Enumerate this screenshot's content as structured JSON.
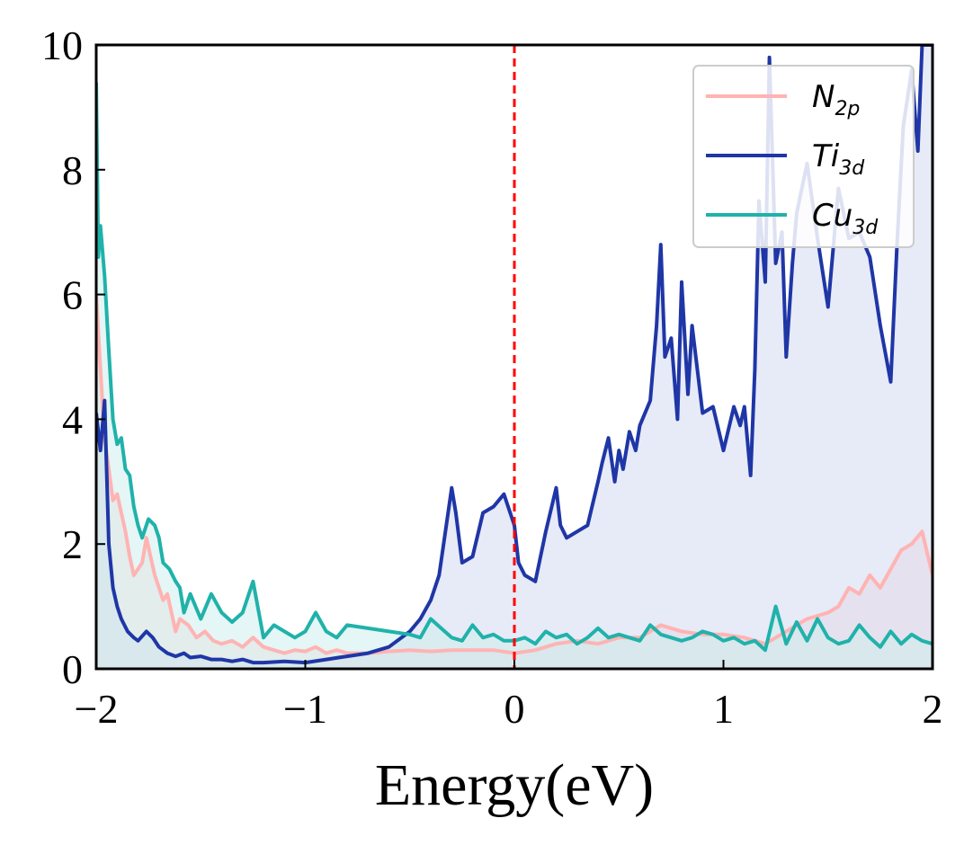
{
  "chart_data": {
    "type": "area",
    "xlabel": "Energy(eV)",
    "ylabel": "",
    "xlim": [
      -2,
      2
    ],
    "ylim": [
      0,
      10
    ],
    "x_ticks": [
      -2,
      -1,
      0,
      1,
      2
    ],
    "x_tick_labels": [
      "−2",
      "−1",
      "0",
      "1",
      "2"
    ],
    "y_ticks": [
      0,
      2,
      4,
      6,
      8,
      10
    ],
    "y_tick_labels": [
      "0",
      "2",
      "4",
      "6",
      "8",
      "10"
    ],
    "fermi_level": 0,
    "fermi_color": "#ff0000",
    "grid": false,
    "legend_position": "top-right",
    "series": [
      {
        "name": "N",
        "name_sub": "2p",
        "key": "n2p",
        "color": "#ffb3b3",
        "fill": "#f5dcdc",
        "x": [
          -2.0,
          -1.98,
          -1.96,
          -1.94,
          -1.92,
          -1.9,
          -1.88,
          -1.86,
          -1.84,
          -1.82,
          -1.8,
          -1.78,
          -1.76,
          -1.74,
          -1.72,
          -1.7,
          -1.68,
          -1.66,
          -1.64,
          -1.62,
          -1.6,
          -1.56,
          -1.52,
          -1.48,
          -1.44,
          -1.4,
          -1.35,
          -1.3,
          -1.25,
          -1.2,
          -1.15,
          -1.1,
          -1.05,
          -1.0,
          -0.95,
          -0.9,
          -0.85,
          -0.8,
          -0.7,
          -0.6,
          -0.5,
          -0.4,
          -0.3,
          -0.2,
          -0.1,
          0.0,
          0.1,
          0.2,
          0.3,
          0.4,
          0.5,
          0.6,
          0.7,
          0.8,
          0.9,
          1.0,
          1.1,
          1.2,
          1.3,
          1.4,
          1.5,
          1.55,
          1.6,
          1.65,
          1.7,
          1.75,
          1.8,
          1.85,
          1.9,
          1.95,
          2.0
        ],
        "y": [
          6.0,
          4.8,
          3.7,
          3.2,
          2.7,
          2.8,
          2.5,
          2.2,
          1.8,
          1.5,
          1.6,
          1.7,
          2.1,
          1.8,
          1.5,
          1.3,
          1.1,
          1.2,
          0.9,
          0.6,
          0.8,
          0.7,
          0.5,
          0.6,
          0.45,
          0.4,
          0.45,
          0.35,
          0.5,
          0.35,
          0.3,
          0.25,
          0.3,
          0.28,
          0.35,
          0.25,
          0.3,
          0.25,
          0.25,
          0.28,
          0.3,
          0.28,
          0.3,
          0.3,
          0.3,
          0.25,
          0.3,
          0.4,
          0.45,
          0.4,
          0.5,
          0.5,
          0.7,
          0.6,
          0.55,
          0.55,
          0.5,
          0.4,
          0.6,
          0.8,
          0.9,
          1.0,
          1.3,
          1.2,
          1.5,
          1.3,
          1.6,
          1.9,
          2.0,
          2.2,
          1.5
        ]
      },
      {
        "name": "Ti",
        "name_sub": "3d",
        "key": "ti3d",
        "color": "#1f36a6",
        "fill": "#d4d9f0",
        "x": [
          -2.0,
          -1.98,
          -1.96,
          -1.94,
          -1.92,
          -1.9,
          -1.88,
          -1.85,
          -1.82,
          -1.8,
          -1.76,
          -1.73,
          -1.7,
          -1.66,
          -1.62,
          -1.58,
          -1.55,
          -1.5,
          -1.45,
          -1.4,
          -1.35,
          -1.3,
          -1.25,
          -1.2,
          -1.1,
          -1.0,
          -0.9,
          -0.8,
          -0.7,
          -0.6,
          -0.5,
          -0.45,
          -0.4,
          -0.36,
          -0.33,
          -0.3,
          -0.28,
          -0.25,
          -0.2,
          -0.15,
          -0.1,
          -0.05,
          0.0,
          0.02,
          0.05,
          0.1,
          0.15,
          0.2,
          0.22,
          0.25,
          0.3,
          0.35,
          0.4,
          0.42,
          0.45,
          0.48,
          0.5,
          0.52,
          0.55,
          0.58,
          0.6,
          0.65,
          0.68,
          0.7,
          0.72,
          0.75,
          0.78,
          0.8,
          0.83,
          0.85,
          0.9,
          0.95,
          1.0,
          1.05,
          1.08,
          1.1,
          1.13,
          1.15,
          1.17,
          1.2,
          1.22,
          1.25,
          1.28,
          1.3,
          1.33,
          1.35,
          1.4,
          1.45,
          1.5,
          1.55,
          1.6,
          1.65,
          1.7,
          1.75,
          1.8,
          1.83,
          1.86,
          1.9,
          1.93,
          1.95,
          2.0
        ],
        "y": [
          4.1,
          3.5,
          4.3,
          2.0,
          1.3,
          1.0,
          0.8,
          0.6,
          0.5,
          0.45,
          0.6,
          0.5,
          0.35,
          0.25,
          0.2,
          0.25,
          0.18,
          0.2,
          0.15,
          0.15,
          0.12,
          0.15,
          0.1,
          0.1,
          0.12,
          0.1,
          0.15,
          0.2,
          0.25,
          0.35,
          0.6,
          0.8,
          1.1,
          1.5,
          2.2,
          2.9,
          2.5,
          1.7,
          1.8,
          2.5,
          2.6,
          2.8,
          2.3,
          1.7,
          1.5,
          1.4,
          2.2,
          2.9,
          2.3,
          2.1,
          2.2,
          2.3,
          3.0,
          3.3,
          3.7,
          3.0,
          3.5,
          3.2,
          3.8,
          3.5,
          3.9,
          4.3,
          5.5,
          6.8,
          5.0,
          5.3,
          4.0,
          6.2,
          4.4,
          5.5,
          4.1,
          4.2,
          3.5,
          4.2,
          3.9,
          4.2,
          3.1,
          4.8,
          7.5,
          6.2,
          9.8,
          6.5,
          7.0,
          5.0,
          6.5,
          7.3,
          8.1,
          6.9,
          5.8,
          7.7,
          6.9,
          7.0,
          6.6,
          5.5,
          4.6,
          6.8,
          8.7,
          9.6,
          8.3,
          10.0,
          10.0
        ]
      },
      {
        "name": "Cu",
        "name_sub": "3d",
        "key": "cu3d",
        "color": "#20b2aa",
        "fill": "#cdeeec",
        "x": [
          -2.0,
          -1.99,
          -1.98,
          -1.96,
          -1.94,
          -1.92,
          -1.9,
          -1.88,
          -1.86,
          -1.84,
          -1.82,
          -1.8,
          -1.78,
          -1.75,
          -1.72,
          -1.7,
          -1.68,
          -1.65,
          -1.62,
          -1.6,
          -1.58,
          -1.55,
          -1.5,
          -1.45,
          -1.4,
          -1.35,
          -1.3,
          -1.25,
          -1.2,
          -1.15,
          -1.1,
          -1.05,
          -1.0,
          -0.95,
          -0.9,
          -0.85,
          -0.8,
          -0.7,
          -0.6,
          -0.5,
          -0.45,
          -0.4,
          -0.35,
          -0.3,
          -0.25,
          -0.2,
          -0.15,
          -0.1,
          -0.05,
          0.0,
          0.05,
          0.1,
          0.15,
          0.2,
          0.25,
          0.3,
          0.35,
          0.4,
          0.45,
          0.5,
          0.55,
          0.6,
          0.65,
          0.7,
          0.75,
          0.8,
          0.85,
          0.9,
          0.95,
          1.0,
          1.05,
          1.1,
          1.15,
          1.2,
          1.25,
          1.3,
          1.35,
          1.4,
          1.45,
          1.5,
          1.55,
          1.6,
          1.65,
          1.7,
          1.75,
          1.8,
          1.85,
          1.9,
          1.95,
          2.0
        ],
        "y": [
          9.4,
          6.6,
          7.1,
          6.3,
          5.1,
          4.0,
          3.6,
          3.7,
          3.2,
          3.1,
          2.6,
          2.3,
          2.1,
          2.4,
          2.3,
          2.1,
          1.7,
          1.6,
          1.4,
          1.3,
          0.9,
          1.2,
          0.8,
          1.2,
          0.9,
          0.75,
          0.9,
          1.4,
          0.5,
          0.7,
          0.6,
          0.5,
          0.6,
          0.9,
          0.6,
          0.5,
          0.7,
          0.65,
          0.6,
          0.55,
          0.5,
          0.8,
          0.65,
          0.5,
          0.45,
          0.7,
          0.5,
          0.55,
          0.45,
          0.45,
          0.5,
          0.4,
          0.6,
          0.5,
          0.55,
          0.4,
          0.5,
          0.65,
          0.5,
          0.55,
          0.5,
          0.45,
          0.7,
          0.55,
          0.5,
          0.45,
          0.5,
          0.6,
          0.55,
          0.45,
          0.5,
          0.4,
          0.45,
          0.3,
          1.0,
          0.4,
          0.75,
          0.45,
          0.8,
          0.5,
          0.4,
          0.45,
          0.7,
          0.5,
          0.35,
          0.6,
          0.4,
          0.55,
          0.45,
          0.4
        ]
      }
    ]
  }
}
